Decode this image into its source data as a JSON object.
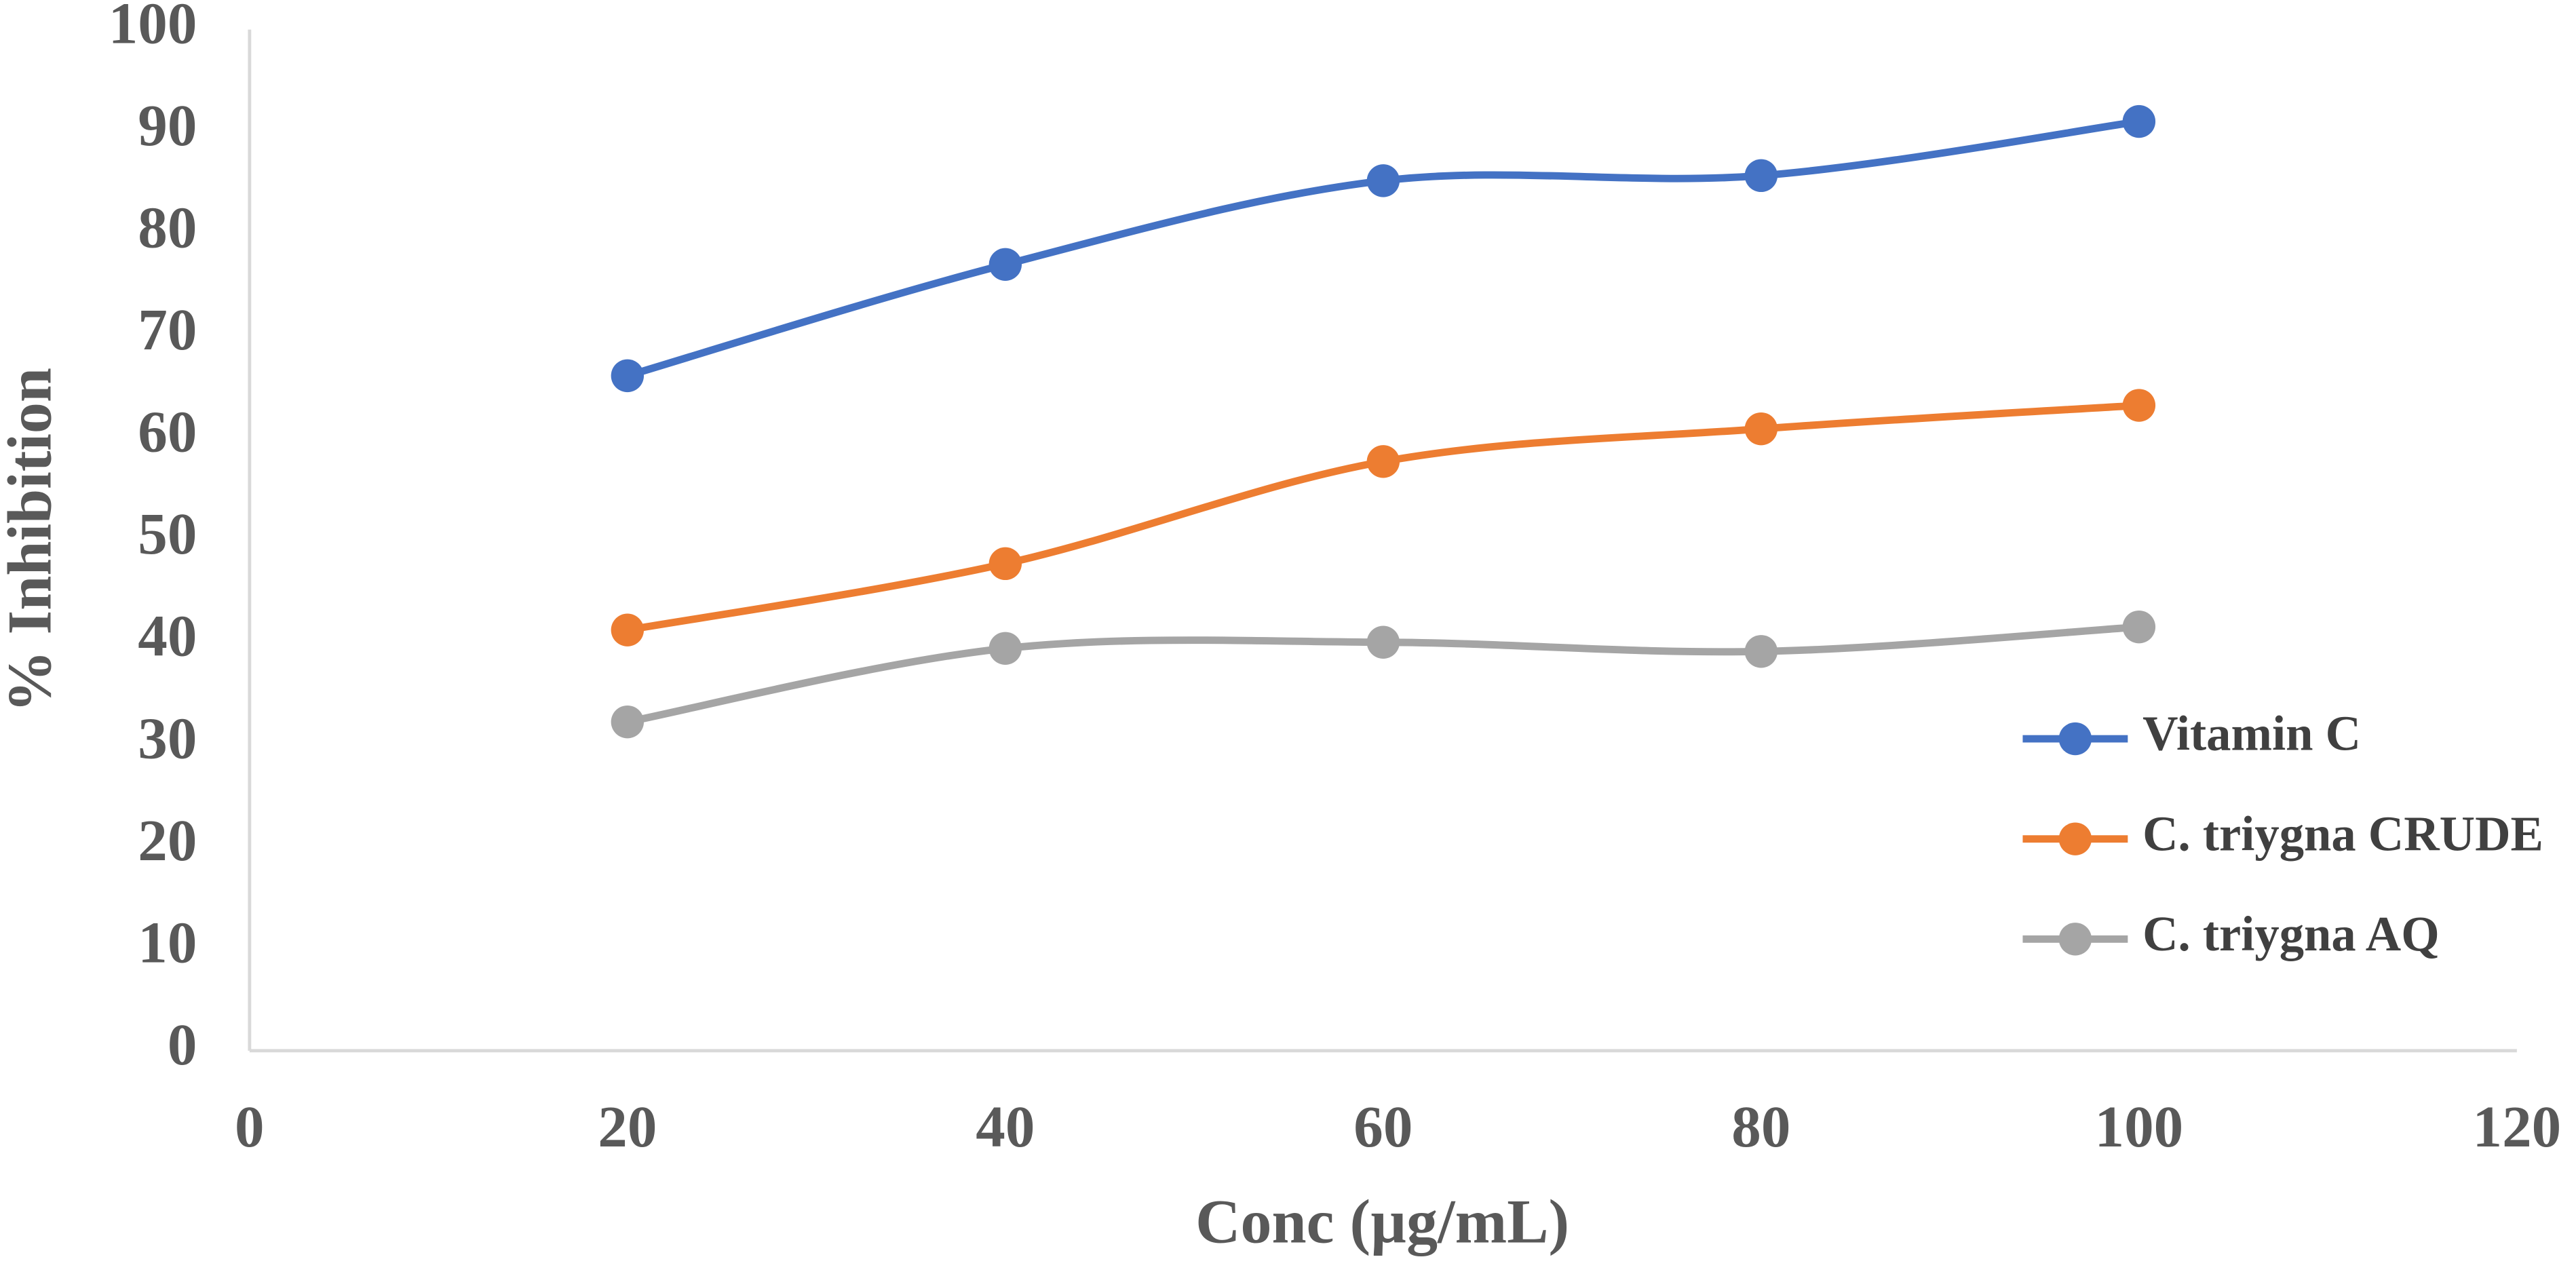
{
  "chart_data": {
    "type": "line",
    "x_label": "Conc (µg/mL)",
    "y_label": "% Inhibition",
    "x": [
      20,
      40,
      60,
      80,
      100
    ],
    "series": [
      {
        "name": "Vitamin C",
        "color": "#4472c4",
        "values": [
          66.1,
          77.0,
          85.2,
          85.7,
          91.0
        ]
      },
      {
        "name": "C. triygna CRUDE",
        "color": "#ed7d31",
        "values": [
          41.2,
          47.7,
          57.7,
          60.9,
          63.2
        ]
      },
      {
        "name": "C. triygna AQ",
        "color": "#a5a5a5",
        "values": [
          32.2,
          39.4,
          40.0,
          39.1,
          41.5
        ]
      }
    ],
    "xlim": [
      0,
      120
    ],
    "xticks": [
      0,
      20,
      40,
      60,
      80,
      100,
      120
    ],
    "ylim": [
      0,
      100
    ],
    "yticks": [
      0,
      10,
      20,
      30,
      40,
      50,
      60,
      70,
      80,
      90,
      100
    ],
    "grid": false,
    "smooth": true,
    "legend": "right"
  }
}
